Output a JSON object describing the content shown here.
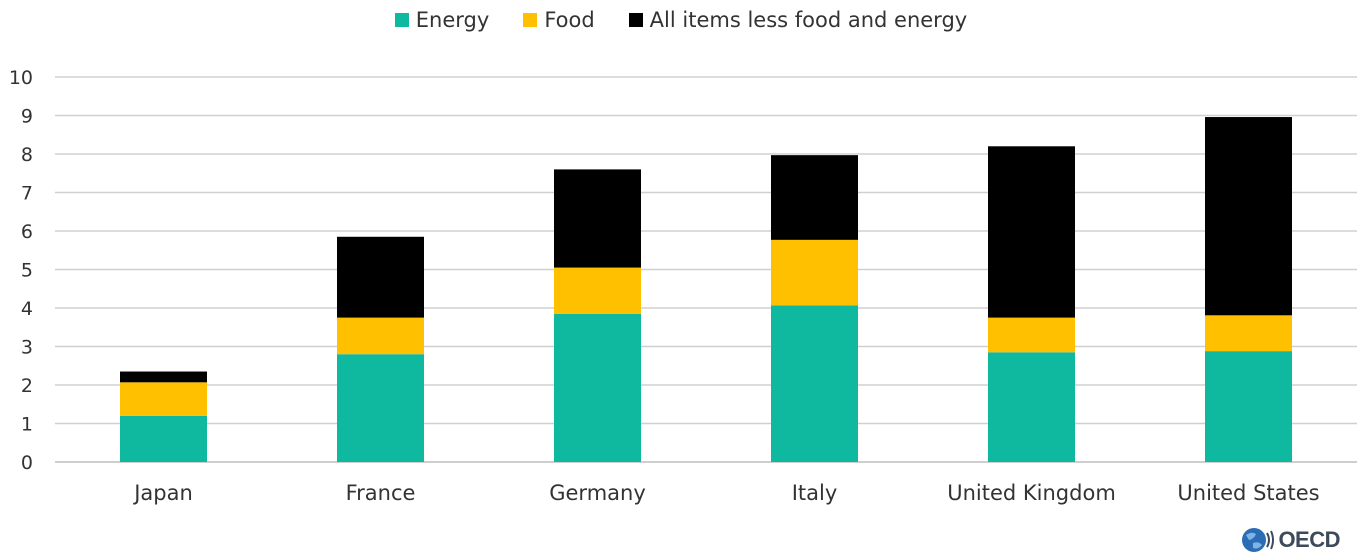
{
  "chart_data": {
    "type": "bar",
    "stacked": true,
    "categories": [
      "Japan",
      "France",
      "Germany",
      "Italy",
      "United Kingdom",
      "United States"
    ],
    "series": [
      {
        "name": "Energy",
        "color": "#0fb9a0",
        "values": [
          1.2,
          2.8,
          3.85,
          4.07,
          2.85,
          2.88
        ]
      },
      {
        "name": "Food",
        "color": "#ffc000",
        "values": [
          0.87,
          0.95,
          1.2,
          1.7,
          0.9,
          0.93
        ]
      },
      {
        "name": "All items less food and energy",
        "color": "#000000",
        "values": [
          0.28,
          2.1,
          2.55,
          2.2,
          4.45,
          5.15
        ]
      }
    ],
    "ylim": [
      0,
      10
    ],
    "yticks": [
      "0",
      "1",
      "2",
      "3",
      "4",
      "5",
      "6",
      "7",
      "8",
      "9",
      "10"
    ],
    "grid": true,
    "legend_position": "top-center"
  },
  "logo": {
    "text": "OECD",
    "globe_color": "#2a6db5"
  }
}
